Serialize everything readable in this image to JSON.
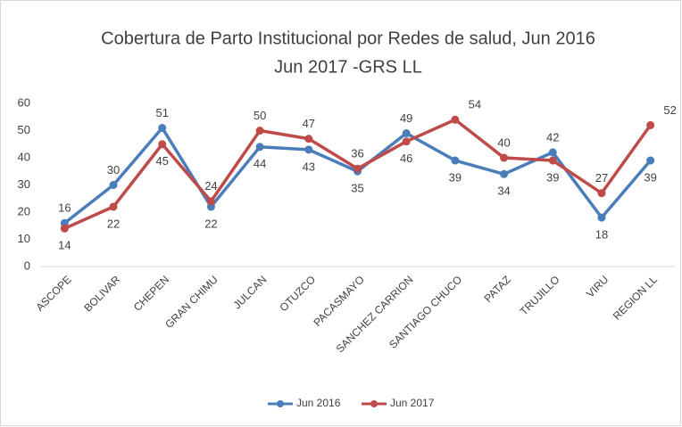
{
  "chart_data": {
    "type": "line",
    "title": [
      "Cobertura de Parto Institucional por Redes de salud, Jun 2016",
      "Jun 2017 -GRS LL"
    ],
    "categories": [
      "ASCOPE",
      "BOLIVAR",
      "CHEPEN",
      "GRAN CHIMU",
      "JULCAN",
      "OTUZCO",
      "PACASMAYO",
      "SANCHEZ CARRION",
      "SANTIAGO CHUCO",
      "PATAZ",
      "TRUJILLO",
      "VIRU",
      "REGION LL"
    ],
    "series": [
      {
        "name": "Jun 2016",
        "color": "#4a7ebb",
        "values": [
          16,
          30,
          51,
          22,
          44,
          43,
          35,
          49,
          39,
          34,
          42,
          18,
          39
        ]
      },
      {
        "name": "Jun 2017",
        "color": "#be4b48",
        "values": [
          14,
          22,
          45,
          24,
          50,
          47,
          36,
          46,
          54,
          40,
          39,
          27,
          52
        ]
      }
    ],
    "ylim": [
      0,
      60
    ],
    "yticks": [
      0,
      10,
      20,
      30,
      40,
      50,
      60
    ],
    "grid": false,
    "legend": "bottom"
  }
}
